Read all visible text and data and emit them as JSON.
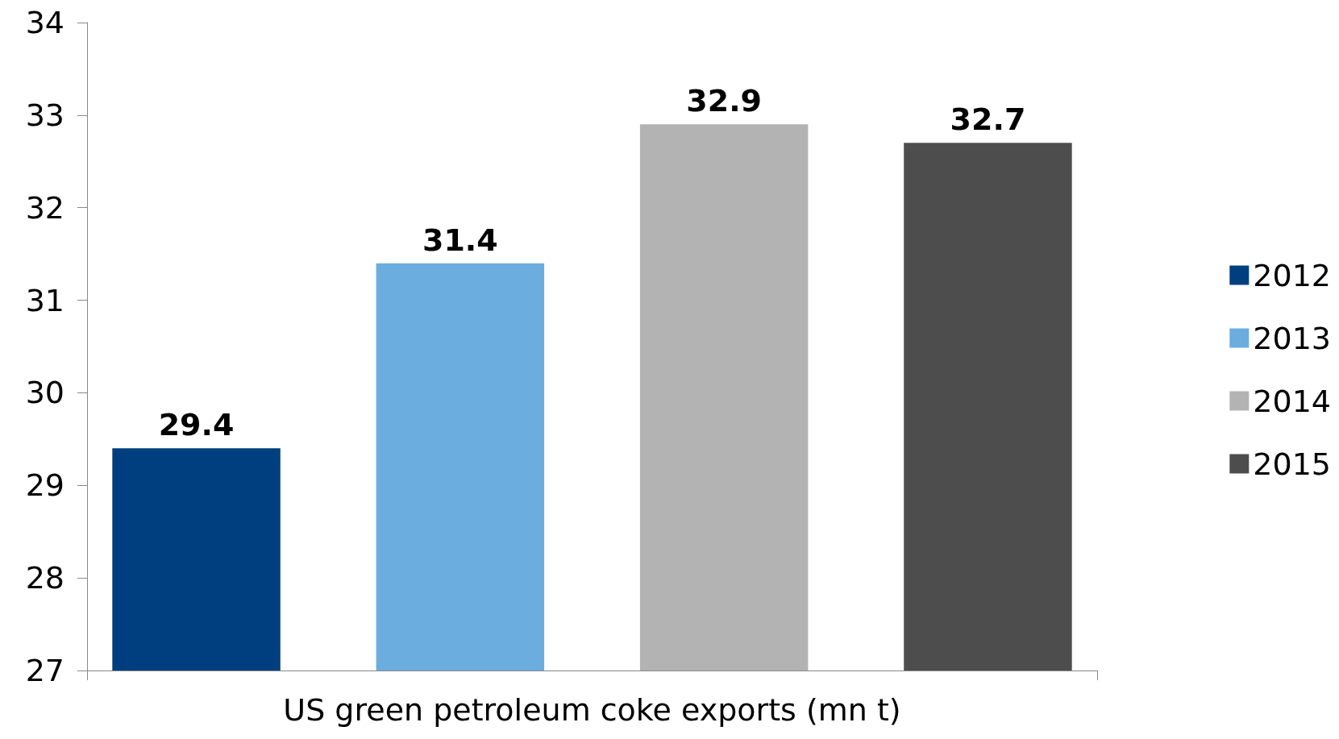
{
  "chart_data": {
    "type": "bar",
    "categories": [
      "US green petroleum coke exports (mn t)"
    ],
    "series": [
      {
        "name": "2012",
        "color": "#003f7f",
        "values": [
          29.4
        ]
      },
      {
        "name": "2013",
        "color": "#6badde",
        "values": [
          31.4
        ]
      },
      {
        "name": "2014",
        "color": "#b3b3b3",
        "values": [
          32.9
        ]
      },
      {
        "name": "2015",
        "color": "#4d4d4d",
        "values": [
          32.7
        ]
      }
    ],
    "ylim": [
      27,
      34
    ],
    "yticks": [
      27,
      28,
      29,
      30,
      31,
      32,
      33,
      34
    ],
    "grid": false,
    "legend": "right",
    "data_labels": true
  }
}
